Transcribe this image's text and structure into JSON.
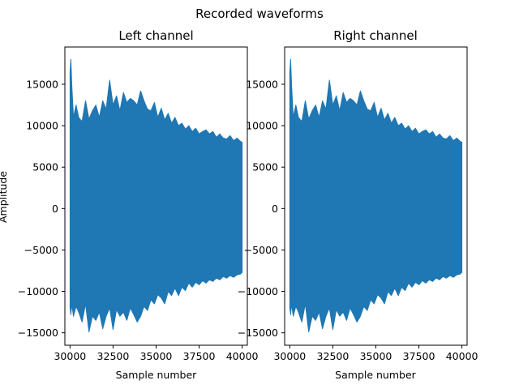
{
  "figure": {
    "suptitle": "Recorded waveforms"
  },
  "chart_data": [
    {
      "type": "line",
      "title": "Left channel",
      "xlabel": "Sample number",
      "ylabel": "Amplitude",
      "xlim": [
        29700,
        40300
      ],
      "ylim": [
        -16500,
        19500
      ],
      "xticks": [
        30000,
        32500,
        35000,
        37500,
        40000
      ],
      "yticks": [
        -15000,
        -10000,
        -5000,
        0,
        5000,
        10000,
        15000
      ],
      "grid": false,
      "series_color": "#1f77b4",
      "series": [
        {
          "x": [
            30000,
            30050,
            30100,
            30200,
            30350,
            30500,
            30700,
            30900,
            31100,
            31300,
            31500,
            31700,
            31900,
            32100,
            32300,
            32500,
            32700,
            32900,
            33100,
            33300,
            33500,
            33700,
            33900,
            34100,
            34300,
            34500,
            34700,
            34900,
            35100,
            35300,
            35500,
            35700,
            35900,
            36100,
            36300,
            36500,
            36700,
            36900,
            37100,
            37300,
            37500,
            37700,
            37900,
            38100,
            38300,
            38500,
            38700,
            38900,
            39100,
            39300,
            39500,
            39700,
            39900,
            40000
          ],
          "upper": [
            16500,
            18000,
            15000,
            11000,
            12500,
            11000,
            10500,
            13000,
            10800,
            11800,
            12500,
            11000,
            13000,
            12000,
            15500,
            12500,
            13600,
            11800,
            14000,
            12800,
            13300,
            13000,
            12500,
            14200,
            13000,
            12000,
            11800,
            12800,
            11000,
            12100,
            10700,
            11500,
            10300,
            11000,
            10000,
            10300,
            9600,
            10000,
            9300,
            9700,
            9000,
            9300,
            9500,
            9000,
            9300,
            8600,
            9000,
            8500,
            8400,
            8800,
            8200,
            8500,
            8100,
            8000
          ],
          "lower": [
            -12000,
            -12800,
            -11500,
            -13000,
            -11800,
            -12500,
            -13700,
            -11500,
            -14900,
            -13000,
            -13500,
            -12500,
            -14500,
            -13000,
            -12000,
            -14600,
            -12200,
            -13000,
            -12500,
            -13500,
            -12000,
            -12800,
            -13700,
            -13000,
            -11800,
            -12300,
            -11000,
            -11500,
            -10400,
            -10800,
            -11500,
            -10000,
            -10500,
            -9600,
            -10500,
            -9500,
            -9900,
            -9000,
            -9500,
            -8900,
            -9200,
            -8700,
            -9000,
            -8600,
            -8800,
            -8400,
            -8600,
            -8200,
            -8400,
            -8100,
            -8300,
            -8000,
            -7900,
            -7700
          ]
        }
      ]
    },
    {
      "type": "line",
      "title": "Right channel",
      "xlabel": "Sample number",
      "ylabel": "",
      "xlim": [
        29700,
        40300
      ],
      "ylim": [
        -16500,
        19500
      ],
      "xticks": [
        30000,
        32500,
        35000,
        37500,
        40000
      ],
      "yticks": [
        -15000,
        -10000,
        -5000,
        0,
        5000,
        10000,
        15000
      ],
      "grid": false,
      "series_color": "#1f77b4",
      "series": [
        {
          "x": [
            30000,
            30050,
            30100,
            30200,
            30350,
            30500,
            30700,
            30900,
            31100,
            31300,
            31500,
            31700,
            31900,
            32100,
            32300,
            32500,
            32700,
            32900,
            33100,
            33300,
            33500,
            33700,
            33900,
            34100,
            34300,
            34500,
            34700,
            34900,
            35100,
            35300,
            35500,
            35700,
            35900,
            36100,
            36300,
            36500,
            36700,
            36900,
            37100,
            37300,
            37500,
            37700,
            37900,
            38100,
            38300,
            38500,
            38700,
            38900,
            39100,
            39300,
            39500,
            39700,
            39900,
            40000
          ],
          "upper": [
            16500,
            18000,
            15000,
            11000,
            12500,
            11000,
            10500,
            13000,
            10800,
            11800,
            12500,
            11000,
            13000,
            12000,
            15500,
            12500,
            13600,
            11800,
            14000,
            12800,
            13300,
            13000,
            12500,
            14200,
            13000,
            12000,
            11800,
            12800,
            11000,
            12100,
            10700,
            11500,
            10300,
            11000,
            10000,
            10300,
            9600,
            10000,
            9300,
            9700,
            9000,
            9300,
            9500,
            9000,
            9300,
            8600,
            9000,
            8500,
            8400,
            8800,
            8200,
            8500,
            8100,
            8000
          ],
          "lower": [
            -12000,
            -12800,
            -11500,
            -13000,
            -11800,
            -12500,
            -13700,
            -11500,
            -14900,
            -13000,
            -13500,
            -12500,
            -14500,
            -13000,
            -12000,
            -14600,
            -12200,
            -13000,
            -12500,
            -13500,
            -12000,
            -12800,
            -13700,
            -13000,
            -11800,
            -12300,
            -11000,
            -11500,
            -10400,
            -10800,
            -11500,
            -10000,
            -10500,
            -9600,
            -10500,
            -9500,
            -9900,
            -9000,
            -9500,
            -8900,
            -9200,
            -8700,
            -9000,
            -8600,
            -8800,
            -8400,
            -8600,
            -8200,
            -8400,
            -8100,
            -8300,
            -8000,
            -7900,
            -7700
          ]
        }
      ]
    }
  ]
}
